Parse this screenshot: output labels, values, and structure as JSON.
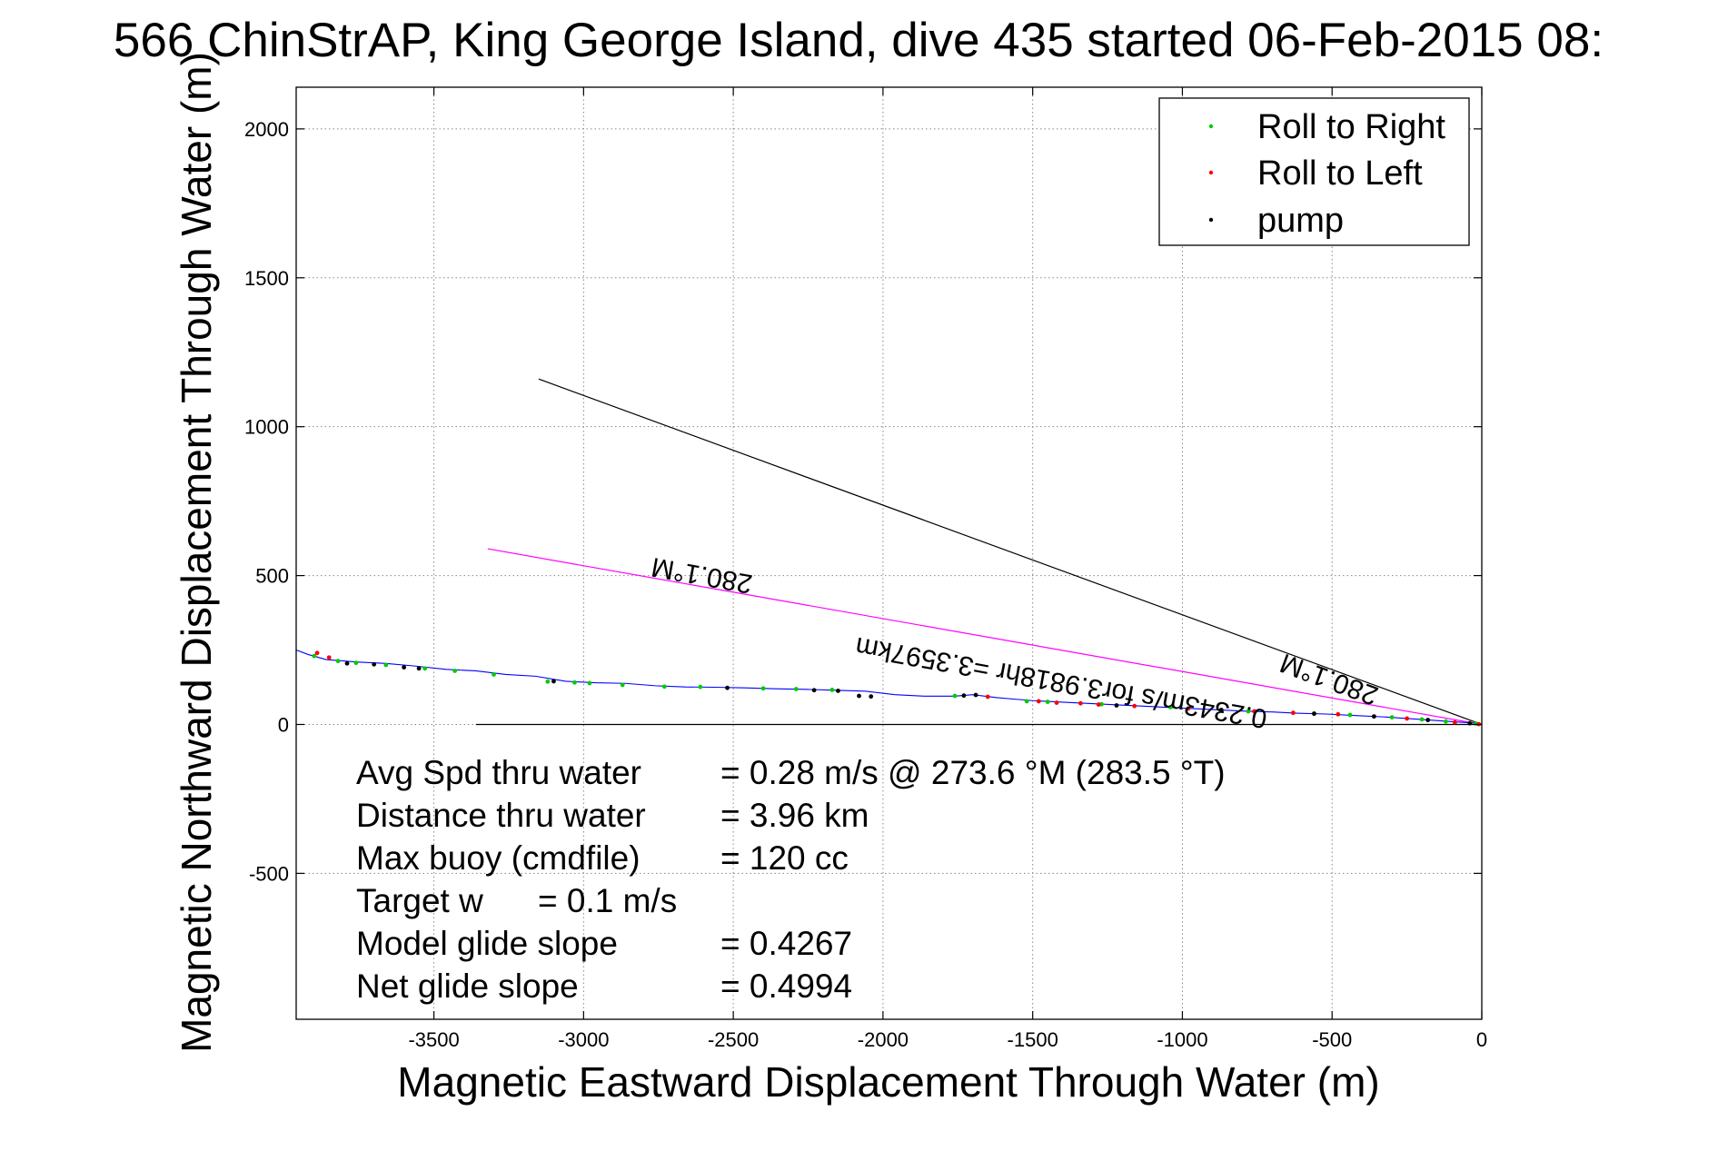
{
  "chart_data": {
    "type": "scatter",
    "title": "566 ChinStrAP, King George Island, dive 435 started 06-Feb-2015 08:",
    "xlabel": "Magnetic Eastward Displacement Through Water (m)",
    "ylabel": "Magnetic Northward Displacement Through Water (m)",
    "xlim": [
      -3960,
      0
    ],
    "ylim": [
      -990,
      2140
    ],
    "xticks": [
      -3500,
      -3000,
      -2500,
      -2000,
      -1500,
      -1000,
      -500,
      0
    ],
    "yticks": [
      -500,
      0,
      500,
      1000,
      1500,
      2000
    ],
    "grid": true,
    "legend_position": "top-right",
    "legend": [
      {
        "label": "Roll to Right",
        "color": "#00cc00"
      },
      {
        "label": "Roll to Left",
        "color": "#ff0000"
      },
      {
        "label": "pump",
        "color": "#000000"
      }
    ],
    "track": {
      "name": "track",
      "color": "#0000ff",
      "x": [
        0,
        -30,
        -80,
        -150,
        -220,
        -320,
        -420,
        -520,
        -620,
        -700,
        -800,
        -900,
        -1000,
        -1100,
        -1200,
        -1300,
        -1400,
        -1500,
        -1560,
        -1620,
        -1700,
        -1760,
        -1860,
        -1960,
        -2060,
        -2160,
        -2260,
        -2360,
        -2460,
        -2560,
        -2660,
        -2760,
        -2860,
        -2960,
        -3060,
        -3160,
        -3260,
        -3360,
        -3460,
        -3560,
        -3660,
        -3760,
        -3860,
        -3920,
        -3960
      ],
      "y": [
        0,
        5,
        8,
        13,
        18,
        25,
        30,
        35,
        38,
        42,
        45,
        50,
        55,
        60,
        65,
        70,
        75,
        80,
        85,
        90,
        100,
        95,
        95,
        100,
        112,
        115,
        118,
        120,
        123,
        125,
        126,
        130,
        138,
        140,
        145,
        162,
        168,
        180,
        185,
        196,
        205,
        210,
        218,
        235,
        250
      ]
    },
    "points": {
      "roll_right": {
        "x": [
          -20,
          -120,
          -200,
          -300,
          -440,
          -560,
          -780,
          -1040,
          -1270,
          -1450,
          -1520,
          -1760,
          -2170,
          -2290,
          -2400,
          -2610,
          -2730,
          -2870,
          -2980,
          -3030,
          -3120,
          -3300,
          -3430,
          -3530,
          -3660,
          -3760,
          -3820,
          -3900
        ],
        "y": [
          3,
          10,
          17,
          24,
          32,
          37,
          44,
          58,
          68,
          76,
          78,
          96,
          116,
          119,
          121,
          126,
          127,
          133,
          139,
          141,
          144,
          168,
          180,
          188,
          200,
          207,
          213,
          230
        ]
      },
      "roll_left": {
        "x": [
          -10,
          -90,
          -250,
          -480,
          -630,
          -760,
          -980,
          -1160,
          -1280,
          -1340,
          -1420,
          -1480,
          -1650,
          -3850,
          -3890
        ],
        "y": [
          1,
          7,
          20,
          34,
          39,
          44,
          54,
          62,
          67,
          71,
          73,
          78,
          93,
          225,
          240
        ]
      },
      "pump": {
        "x": [
          -40,
          -180,
          -360,
          -560,
          -870,
          -1220,
          -1690,
          -1730,
          -2040,
          -2080,
          -2150,
          -2230,
          -2520,
          -3100,
          -3550,
          -3600,
          -3700,
          -3790
        ],
        "y": [
          4,
          15,
          27,
          36,
          49,
          64,
          99,
          97,
          94,
          96,
          113,
          115,
          123,
          145,
          188,
          192,
          202,
          205
        ]
      }
    },
    "reference_lines": [
      {
        "x": [
          0,
          -3150
        ],
        "y": [
          0,
          1160
        ],
        "color": "#000000"
      },
      {
        "x": [
          0,
          -3320
        ],
        "y": [
          0,
          590
        ],
        "color": "#ff00ff"
      },
      {
        "x": [
          0,
          -3360
        ],
        "y": [
          0,
          0
        ],
        "color": "#000000"
      }
    ],
    "annotations": [
      {
        "text": "280.1°M",
        "x": -2600,
        "y": 530,
        "rotation": 190.1
      },
      {
        "text": "0.2343m/s for3.9818hr =3.3597km",
        "x": -1400,
        "y": 170,
        "rotation": 190.1
      },
      {
        "text": "280.1°M",
        "x": -500,
        "y": 180,
        "rotation": 200.2
      }
    ],
    "stats": [
      {
        "label": "Avg Spd thru water",
        "value": "=  0.28 m/s @ 273.6 °M (283.5 °T)"
      },
      {
        "label": "Distance thru water",
        "value": "=  3.96 km"
      },
      {
        "label": "Max buoy (cmdfile)",
        "value": "= 120 cc"
      },
      {
        "label": "Target w",
        "value": "= 0.1 m/s"
      },
      {
        "label": "Model glide slope",
        "value": "= 0.4267"
      },
      {
        "label": "Net glide slope",
        "value": "= 0.4994"
      }
    ]
  }
}
